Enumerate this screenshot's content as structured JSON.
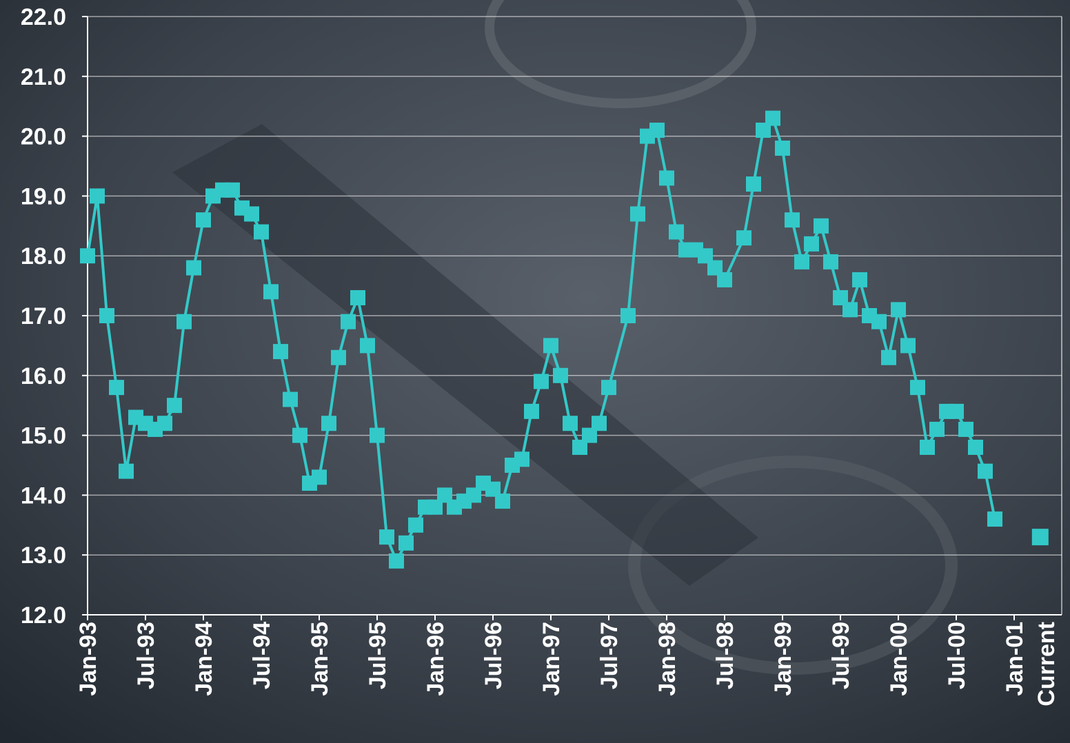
{
  "chart_data": {
    "type": "line",
    "color": "#33c9c9",
    "grid": true,
    "x": [
      "1993-01",
      "1993-02",
      "1993-03",
      "1993-04",
      "1993-05",
      "1993-06",
      "1993-07",
      "1993-08",
      "1993-09",
      "1993-10",
      "1993-11",
      "1993-12",
      "1994-01",
      "1994-02",
      "1994-03",
      "1994-04",
      "1994-05",
      "1994-06",
      "1994-07",
      "1994-08",
      "1994-09",
      "1994-10",
      "1994-11",
      "1994-12",
      "1995-01",
      "1995-02",
      "1995-03",
      "1995-04",
      "1995-05",
      "1995-06",
      "1995-07",
      "1995-08",
      "1995-09",
      "1995-10",
      "1995-11",
      "1995-12",
      "1996-01",
      "1996-02",
      "1996-03",
      "1996-04",
      "1996-05",
      "1996-06",
      "1996-07",
      "1996-08",
      "1996-09",
      "1996-10",
      "1996-11",
      "1996-12",
      "1997-01",
      "1997-02",
      "1997-03",
      "1997-04",
      "1997-05",
      "1997-06",
      "1997-07",
      "1997-09",
      "1997-10",
      "1997-11",
      "1997-12",
      "1998-01",
      "1998-02",
      "1998-03",
      "1998-04",
      "1998-05",
      "1998-06",
      "1998-07",
      "1998-09",
      "1998-10",
      "1998-11",
      "1998-12",
      "1999-01",
      "1999-02",
      "1999-03",
      "1999-04",
      "1999-05",
      "1999-06",
      "1999-07",
      "1999-08",
      "1999-09",
      "1999-10",
      "1999-11",
      "1999-12",
      "2000-01",
      "2000-02",
      "2000-03",
      "2000-04",
      "2000-05",
      "2000-06",
      "2000-07",
      "2000-08",
      "2000-09",
      "2000-10",
      "2000-11"
    ],
    "values": [
      18.0,
      19.0,
      17.0,
      15.8,
      14.4,
      15.3,
      15.2,
      15.1,
      15.2,
      15.5,
      16.9,
      17.8,
      18.6,
      19.0,
      19.1,
      19.1,
      18.8,
      18.7,
      18.4,
      17.4,
      16.4,
      15.6,
      15.0,
      14.2,
      14.3,
      15.2,
      16.3,
      16.9,
      17.3,
      16.5,
      15.0,
      13.3,
      12.9,
      13.2,
      13.5,
      13.8,
      13.8,
      14.0,
      13.8,
      13.9,
      14.0,
      14.2,
      14.1,
      13.9,
      14.5,
      14.6,
      15.4,
      15.9,
      16.5,
      16.0,
      15.2,
      14.8,
      15.0,
      15.2,
      15.8,
      17.0,
      18.7,
      20.0,
      20.1,
      19.3,
      18.4,
      18.1,
      18.1,
      18.0,
      17.8,
      17.6,
      18.3,
      19.2,
      20.1,
      20.3,
      19.8,
      18.6,
      17.9,
      18.2,
      18.5,
      17.9,
      17.3,
      17.1,
      17.6,
      17.0,
      16.9,
      16.3,
      17.1,
      16.5,
      15.8,
      14.8,
      15.1,
      15.4,
      15.4,
      15.1,
      14.8,
      14.4,
      13.6
    ],
    "current_label": "Current",
    "current_value": 13.3,
    "xticks": [
      {
        "value": "1993-01",
        "label": "Jan-93"
      },
      {
        "value": "1993-07",
        "label": "Jul-93"
      },
      {
        "value": "1994-01",
        "label": "Jan-94"
      },
      {
        "value": "1994-07",
        "label": "Jul-94"
      },
      {
        "value": "1995-01",
        "label": "Jan-95"
      },
      {
        "value": "1995-07",
        "label": "Jul-95"
      },
      {
        "value": "1996-01",
        "label": "Jan-96"
      },
      {
        "value": "1996-07",
        "label": "Jul-96"
      },
      {
        "value": "1997-01",
        "label": "Jan-97"
      },
      {
        "value": "1997-07",
        "label": "Jul-97"
      },
      {
        "value": "1998-01",
        "label": "Jan-98"
      },
      {
        "value": "1998-07",
        "label": "Jul-98"
      },
      {
        "value": "1999-01",
        "label": "Jan-99"
      },
      {
        "value": "1999-07",
        "label": "Jul-99"
      },
      {
        "value": "2000-01",
        "label": "Jan-00"
      },
      {
        "value": "2000-07",
        "label": "Jul-00"
      },
      {
        "value": "2001-01",
        "label": "Jan-01"
      }
    ],
    "ylim": [
      12,
      22
    ],
    "yticks": [
      {
        "value": 12,
        "label": "12.0"
      },
      {
        "value": 13,
        "label": "13.0"
      },
      {
        "value": 14,
        "label": "14.0"
      },
      {
        "value": 15,
        "label": "15.0"
      },
      {
        "value": 16,
        "label": "16.0"
      },
      {
        "value": 17,
        "label": "17.0"
      },
      {
        "value": 18,
        "label": "18.0"
      },
      {
        "value": 19,
        "label": "19.0"
      },
      {
        "value": 20,
        "label": "20.0"
      },
      {
        "value": 21,
        "label": "21.0"
      },
      {
        "value": 22,
        "label": "22.0"
      }
    ]
  }
}
